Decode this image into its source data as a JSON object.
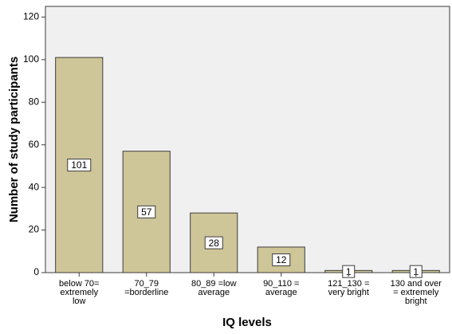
{
  "chart_data": {
    "type": "bar",
    "title": "",
    "xlabel": "IQ levels",
    "ylabel": "Number of study participants",
    "ylim": [
      0,
      125
    ],
    "yticks": [
      0,
      20,
      40,
      60,
      80,
      100,
      120
    ],
    "grid": false,
    "categories": [
      [
        "below 70=",
        "extremely",
        "low"
      ],
      [
        "70_79",
        "=borderline"
      ],
      [
        "80_89 =low",
        "average"
      ],
      [
        "90_110 =",
        "average"
      ],
      [
        "121_130 =",
        "very bright"
      ],
      [
        "130 and over",
        "= extremely",
        "bright"
      ]
    ],
    "values": [
      101,
      57,
      28,
      12,
      1,
      1
    ],
    "data_labels": [
      "101",
      "57",
      "28",
      "12",
      "1",
      "1"
    ],
    "colors": {
      "bar_fill": "#cec598",
      "bar_stroke": "#3c3c3c",
      "plot_background": "#f0f0f0",
      "label_box_fill": "#ffffff",
      "text": "#000000"
    }
  }
}
